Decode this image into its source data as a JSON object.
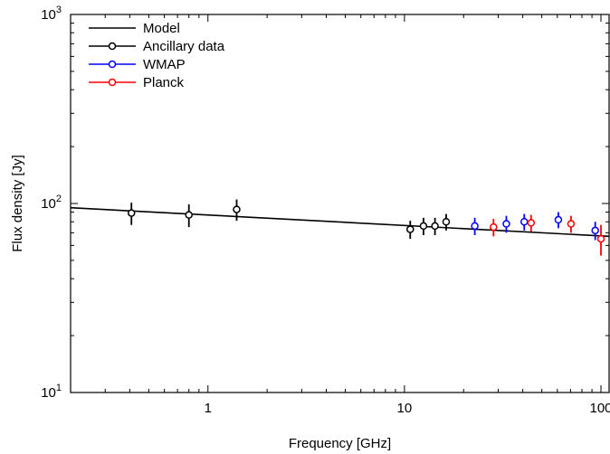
{
  "chart_data": {
    "type": "scatter",
    "xlabel": "Frequency [GHz]",
    "ylabel": "Flux density [Jy]",
    "xscale": "log",
    "yscale": "log",
    "xlim": [
      0.2,
      110
    ],
    "ylim": [
      10,
      1000
    ],
    "x_ticks": [
      {
        "value": 1,
        "label": "1"
      },
      {
        "value": 10,
        "label": "10"
      },
      {
        "value": 100,
        "label": "100"
      }
    ],
    "y_ticks": [
      {
        "value": 10,
        "base": "10",
        "exp": "1"
      },
      {
        "value": 100,
        "base": "10",
        "exp": "2"
      },
      {
        "value": 1000,
        "base": "10",
        "exp": "3"
      }
    ],
    "legend_position": "top-left",
    "model": {
      "name": "Model",
      "color": "#000000",
      "points": [
        [
          0.2,
          95
        ],
        [
          110,
          67
        ]
      ]
    },
    "series": [
      {
        "name": "Ancillary data",
        "color": "#000000",
        "points": [
          {
            "x": 0.408,
            "y": 89,
            "err": 12
          },
          {
            "x": 0.8,
            "y": 87,
            "err": 12
          },
          {
            "x": 1.4,
            "y": 93,
            "err": 12
          },
          {
            "x": 10.7,
            "y": 73,
            "err": 8
          },
          {
            "x": 12.5,
            "y": 76,
            "err": 8
          },
          {
            "x": 14.3,
            "y": 76,
            "err": 8
          },
          {
            "x": 16.3,
            "y": 80,
            "err": 8
          }
        ]
      },
      {
        "name": "WMAP",
        "color": "#0000ff",
        "points": [
          {
            "x": 22.8,
            "y": 76,
            "err": 8
          },
          {
            "x": 33.0,
            "y": 78,
            "err": 8
          },
          {
            "x": 40.7,
            "y": 80,
            "err": 8
          },
          {
            "x": 60.7,
            "y": 82,
            "err": 8
          },
          {
            "x": 93.5,
            "y": 72,
            "err": 8
          }
        ]
      },
      {
        "name": "Planck",
        "color": "#ff0000",
        "points": [
          {
            "x": 28.4,
            "y": 75,
            "err": 8
          },
          {
            "x": 44.1,
            "y": 79,
            "err": 8
          },
          {
            "x": 70.4,
            "y": 78,
            "err": 8
          },
          {
            "x": 100,
            "y": 65,
            "err": 12
          }
        ]
      }
    ]
  }
}
